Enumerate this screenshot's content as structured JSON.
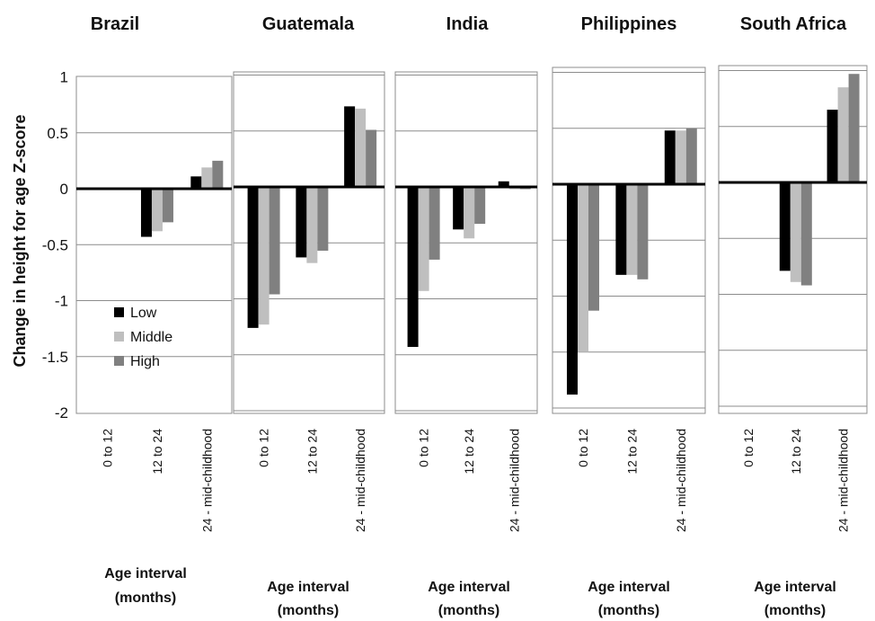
{
  "chart_data": {
    "type": "bar",
    "ylabel": "Change in height for age Z-score",
    "ylim": [
      -2,
      1
    ],
    "yticks": [
      "1",
      "0.5",
      "0",
      "-0.5",
      "-1",
      "-1.5",
      "-2"
    ],
    "categories": [
      "0 to 12",
      "12 to 24",
      "24 - mid-childhood"
    ],
    "legend": [
      {
        "name": "Low",
        "color": "#000000"
      },
      {
        "name": "Middle",
        "color": "#bfbfbf"
      },
      {
        "name": "High",
        "color": "#808080"
      }
    ],
    "legend_placement": "lower-left of first panel",
    "grid": true,
    "panels": [
      {
        "title": "Brazil",
        "xlabel": [
          "Age interval",
          "(months)"
        ],
        "series": [
          {
            "name": "Low",
            "values": [
              null,
              -0.43,
              0.11
            ]
          },
          {
            "name": "Middle",
            "values": [
              null,
              -0.38,
              0.19
            ]
          },
          {
            "name": "High",
            "values": [
              null,
              -0.3,
              0.25
            ]
          }
        ]
      },
      {
        "title": "Guatemala",
        "xlabel": [
          "Age  interval",
          "(months)"
        ],
        "series": [
          {
            "name": "Low",
            "values": [
              -1.26,
              -0.63,
              0.72
            ]
          },
          {
            "name": "Middle",
            "values": [
              -1.23,
              -0.68,
              0.7
            ]
          },
          {
            "name": "High",
            "values": [
              -0.96,
              -0.57,
              0.51
            ]
          }
        ]
      },
      {
        "title": "India",
        "xlabel": [
          "Age interval",
          "(months)"
        ],
        "series": [
          {
            "name": "Low",
            "values": [
              -1.43,
              -0.38,
              0.05
            ]
          },
          {
            "name": "Middle",
            "values": [
              -0.93,
              -0.46,
              -0.02
            ]
          },
          {
            "name": "High",
            "values": [
              -0.65,
              -0.33,
              -0.02
            ]
          }
        ]
      },
      {
        "title": "Philippines",
        "xlabel": [
          "Age interval",
          "(months)"
        ],
        "series": [
          {
            "name": "Low",
            "values": [
              -1.88,
              -0.81,
              0.48
            ]
          },
          {
            "name": "Middle",
            "values": [
              -1.5,
              -0.81,
              0.48
            ]
          },
          {
            "name": "High",
            "values": [
              -1.13,
              -0.85,
              0.5
            ]
          }
        ]
      },
      {
        "title": "South Africa",
        "xlabel": [
          "Age interval",
          "(months)"
        ],
        "series": [
          {
            "name": "Low",
            "values": [
              null,
              -0.79,
              0.65
            ]
          },
          {
            "name": "Middle",
            "values": [
              null,
              -0.89,
              0.85
            ]
          },
          {
            "name": "High",
            "values": [
              null,
              -0.92,
              0.97
            ]
          }
        ]
      }
    ]
  }
}
